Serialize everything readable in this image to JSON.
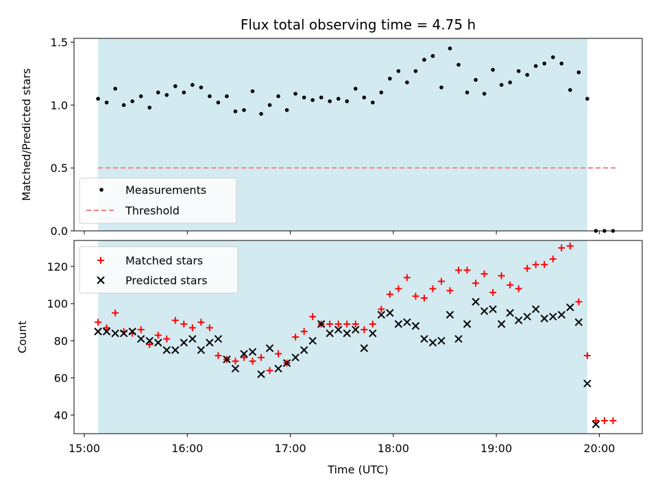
{
  "chart_data": [
    {
      "type": "scatter",
      "title": "Flux total observing time = 4.75 h",
      "ylabel": "Matched/Predicted stars",
      "xlim": [
        "14:54",
        "20:25"
      ],
      "ylim": [
        0,
        1.53
      ],
      "yticks": [
        "0.0",
        "0.5",
        "1.0",
        "1.5"
      ],
      "shaded_span": {
        "start": "15:08",
        "end": "19:53",
        "color": "#d4eaf1"
      },
      "threshold": {
        "name": "Threshold",
        "value": 0.5,
        "x_start": "15:08",
        "x_end": "20:10",
        "color": "#f08080",
        "style": "dashed"
      },
      "legend": {
        "position": "lower-left",
        "entries": [
          "Measurements",
          "Threshold"
        ]
      },
      "series": [
        {
          "name": "Measurements",
          "marker": "dot",
          "color": "#000000",
          "x": [
            "15:08",
            "15:13",
            "15:18",
            "15:23",
            "15:28",
            "15:33",
            "15:38",
            "15:43",
            "15:48",
            "15:53",
            "15:58",
            "16:03",
            "16:08",
            "16:13",
            "16:18",
            "16:23",
            "16:28",
            "16:33",
            "16:38",
            "16:43",
            "16:48",
            "16:53",
            "16:58",
            "17:03",
            "17:08",
            "17:13",
            "17:18",
            "17:23",
            "17:28",
            "17:33",
            "17:38",
            "17:43",
            "17:48",
            "17:53",
            "17:58",
            "18:03",
            "18:08",
            "18:13",
            "18:18",
            "18:23",
            "18:28",
            "18:33",
            "18:38",
            "18:43",
            "18:48",
            "18:53",
            "18:58",
            "19:03",
            "19:08",
            "19:13",
            "19:18",
            "19:23",
            "19:28",
            "19:33",
            "19:38",
            "19:43",
            "19:48",
            "19:53",
            "19:58",
            "20:03",
            "20:08"
          ],
          "y": [
            1.05,
            1.02,
            1.13,
            1.0,
            1.03,
            1.07,
            0.98,
            1.1,
            1.08,
            1.15,
            1.1,
            1.16,
            1.14,
            1.07,
            1.02,
            1.07,
            0.95,
            0.96,
            1.11,
            0.93,
            1.0,
            1.07,
            0.96,
            1.09,
            1.06,
            1.04,
            1.06,
            1.03,
            1.05,
            1.03,
            1.13,
            1.06,
            1.02,
            1.1,
            1.21,
            1.27,
            1.18,
            1.27,
            1.36,
            1.39,
            1.14,
            1.45,
            1.32,
            1.1,
            1.2,
            1.09,
            1.28,
            1.16,
            1.18,
            1.27,
            1.24,
            1.31,
            1.33,
            1.38,
            1.33,
            1.12,
            1.26,
            1.05,
            0.0,
            0.0,
            0.0
          ]
        }
      ]
    },
    {
      "type": "scatter",
      "xlabel": "Time (UTC)",
      "ylabel": "Count",
      "xlim": [
        "14:54",
        "20:25"
      ],
      "ylim": [
        30,
        134
      ],
      "yticks": [
        "40",
        "60",
        "80",
        "100",
        "120"
      ],
      "xticks": [
        "15:00",
        "16:00",
        "17:00",
        "18:00",
        "19:00",
        "20:00"
      ],
      "shaded_span": {
        "start": "15:08",
        "end": "19:53",
        "color": "#d4eaf1"
      },
      "legend": {
        "position": "upper-left",
        "entries": [
          "Matched stars",
          "Predicted stars"
        ]
      },
      "series": [
        {
          "name": "Matched stars",
          "marker": "plus",
          "color": "#ff0000",
          "x": [
            "15:08",
            "15:13",
            "15:18",
            "15:23",
            "15:28",
            "15:33",
            "15:38",
            "15:43",
            "15:48",
            "15:53",
            "15:58",
            "16:03",
            "16:08",
            "16:13",
            "16:18",
            "16:23",
            "16:28",
            "16:33",
            "16:38",
            "16:43",
            "16:48",
            "16:53",
            "16:58",
            "17:03",
            "17:08",
            "17:13",
            "17:18",
            "17:23",
            "17:28",
            "17:33",
            "17:38",
            "17:43",
            "17:48",
            "17:53",
            "17:58",
            "18:03",
            "18:08",
            "18:13",
            "18:18",
            "18:23",
            "18:28",
            "18:33",
            "18:38",
            "18:43",
            "18:48",
            "18:53",
            "18:58",
            "19:03",
            "19:08",
            "19:13",
            "19:18",
            "19:23",
            "19:28",
            "19:33",
            "19:38",
            "19:43",
            "19:48",
            "19:53",
            "19:58",
            "20:03",
            "20:08"
          ],
          "y": [
            90,
            87,
            95,
            85,
            84,
            86,
            78,
            83,
            81,
            91,
            89,
            87,
            90,
            87,
            72,
            70,
            69,
            71,
            69,
            71,
            64,
            73,
            68,
            82,
            85,
            93,
            89,
            89,
            89,
            89,
            89,
            86,
            89,
            97,
            105,
            108,
            114,
            104,
            103,
            108,
            112,
            107,
            118,
            118,
            111,
            116,
            106,
            115,
            110,
            108,
            119,
            121,
            121,
            124,
            130,
            131,
            101,
            72,
            37,
            37,
            37
          ]
        },
        {
          "name": "Predicted stars",
          "marker": "x",
          "color": "#000000",
          "x": [
            "15:08",
            "15:13",
            "15:18",
            "15:23",
            "15:28",
            "15:33",
            "15:38",
            "15:43",
            "15:48",
            "15:53",
            "15:58",
            "16:03",
            "16:08",
            "16:13",
            "16:18",
            "16:23",
            "16:28",
            "16:33",
            "16:38",
            "16:43",
            "16:48",
            "16:53",
            "16:58",
            "17:03",
            "17:08",
            "17:13",
            "17:18",
            "17:23",
            "17:28",
            "17:33",
            "17:38",
            "17:43",
            "17:48",
            "17:53",
            "17:58",
            "18:03",
            "18:08",
            "18:13",
            "18:18",
            "18:23",
            "18:28",
            "18:33",
            "18:38",
            "18:43",
            "18:48",
            "18:53",
            "18:58",
            "19:03",
            "19:08",
            "19:13",
            "19:18",
            "19:23",
            "19:28",
            "19:33",
            "19:38",
            "19:43",
            "19:48",
            "19:53",
            "19:58"
          ],
          "y": [
            85,
            85,
            84,
            84,
            85,
            81,
            80,
            79,
            75,
            75,
            79,
            81,
            75,
            79,
            81,
            70,
            65,
            73,
            74,
            62,
            76,
            65,
            68,
            71,
            75,
            80,
            89,
            84,
            86,
            84,
            86,
            76,
            84,
            94,
            95,
            89,
            90,
            88,
            81,
            79,
            80,
            94,
            81,
            89,
            101,
            96,
            97,
            89,
            95,
            91,
            93,
            97,
            92,
            93,
            94,
            98,
            90,
            57,
            35
          ]
        }
      ]
    }
  ]
}
